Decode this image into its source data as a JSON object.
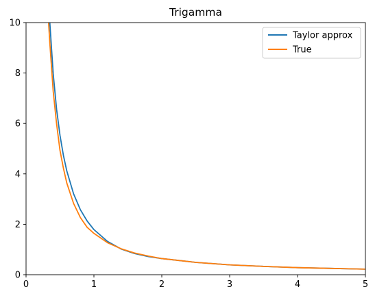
{
  "chart_data": {
    "type": "line",
    "title": "Trigamma",
    "xlabel": "",
    "ylabel": "",
    "xlim": [
      0,
      5
    ],
    "ylim": [
      0,
      10
    ],
    "xticks": [
      0,
      1,
      2,
      3,
      4,
      5
    ],
    "yticks": [
      0,
      2,
      4,
      6,
      8,
      10
    ],
    "grid": false,
    "legend_position": "top-right",
    "series": [
      {
        "name": "Taylor approx",
        "color": "#1f77b4",
        "x": [
          0.35,
          0.4,
          0.45,
          0.5,
          0.55,
          0.6,
          0.7,
          0.8,
          0.9,
          1.0,
          1.2,
          1.4,
          1.6,
          1.8,
          2.0,
          2.5,
          3.0,
          3.5,
          4.0,
          4.5,
          5.0
        ],
        "y": [
          10.0,
          7.98,
          6.56,
          5.53,
          4.74,
          4.12,
          3.21,
          2.58,
          2.13,
          1.79,
          1.32,
          1.02,
          0.84,
          0.72,
          0.64,
          0.49,
          0.39,
          0.33,
          0.28,
          0.25,
          0.22
        ]
      },
      {
        "name": "True",
        "color": "#ff7f0e",
        "x": [
          0.33,
          0.35,
          0.4,
          0.45,
          0.5,
          0.55,
          0.6,
          0.7,
          0.8,
          0.9,
          1.0,
          1.2,
          1.4,
          1.6,
          1.8,
          2.0,
          2.5,
          3.0,
          3.5,
          4.0,
          4.5,
          5.0
        ],
        "y": [
          10.09,
          9.2,
          7.28,
          5.98,
          4.93,
          4.23,
          3.64,
          2.83,
          2.27,
          1.88,
          1.64,
          1.27,
          1.03,
          0.86,
          0.74,
          0.64,
          0.49,
          0.39,
          0.33,
          0.28,
          0.25,
          0.22
        ]
      }
    ]
  }
}
